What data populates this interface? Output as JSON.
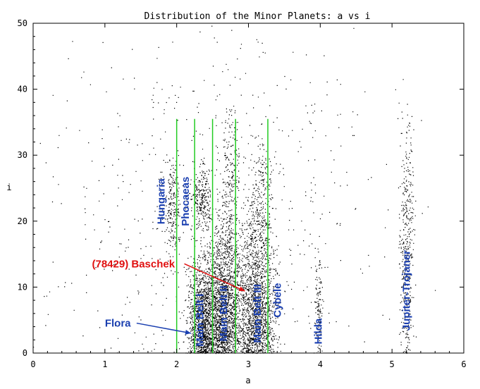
{
  "chart_data": {
    "type": "scatter",
    "title": "Distribution of the Minor Planets: a vs i",
    "xlabel": "a",
    "ylabel": "i",
    "xlim": [
      0,
      6
    ],
    "ylim": [
      0,
      50
    ],
    "xticks": [
      "0",
      "1",
      "2",
      "3",
      "4",
      "5",
      "6"
    ],
    "yticks": [
      "0",
      "10",
      "20",
      "30",
      "40",
      "50"
    ],
    "grid": false,
    "point_color": "#000000",
    "boundary_color": "#22cc22",
    "label_color": "#1a3fb0",
    "highlight_color": "#e01010",
    "boundaries": [
      {
        "x": 2.0,
        "y_top": 35.5
      },
      {
        "x": 2.25,
        "y_top": 35.5
      },
      {
        "x": 2.5,
        "y_top": 35.5
      },
      {
        "x": 2.82,
        "y_top": 35.5
      },
      {
        "x": 3.27,
        "y_top": 35.5
      }
    ],
    "clusters": [
      {
        "x_center": 2.35,
        "x_spread": 0.1,
        "y_center": 5,
        "y_spread": 4.5,
        "count": 1200
      },
      {
        "x_center": 2.65,
        "x_spread": 0.13,
        "y_center": 7,
        "y_spread": 6,
        "count": 1800
      },
      {
        "x_center": 3.1,
        "x_spread": 0.14,
        "y_center": 8,
        "y_spread": 7,
        "count": 1700
      },
      {
        "x_center": 2.75,
        "x_spread": 0.06,
        "y_center": 24,
        "y_spread": 6,
        "count": 250
      },
      {
        "x_center": 2.35,
        "x_spread": 0.07,
        "y_center": 23.5,
        "y_spread": 2.5,
        "count": 260
      },
      {
        "x_center": 1.93,
        "x_spread": 0.05,
        "y_center": 22,
        "y_spread": 4,
        "count": 220
      },
      {
        "x_center": 3.15,
        "x_spread": 0.08,
        "y_center": 24,
        "y_spread": 4,
        "count": 200
      },
      {
        "x_center": 3.97,
        "x_spread": 0.03,
        "y_center": 7,
        "y_spread": 5,
        "count": 130
      },
      {
        "x_center": 5.2,
        "x_spread": 0.05,
        "y_center": 16,
        "y_spread": 10,
        "count": 420
      },
      {
        "x_center": 2.4,
        "x_spread": 1.2,
        "y_center": 22,
        "y_spread": 14,
        "count": 650
      }
    ],
    "region_labels": [
      {
        "text": "Hungaria",
        "x": 1.83,
        "y": 23
      },
      {
        "text": "Phocaeas",
        "x": 2.17,
        "y": 23
      },
      {
        "text": "Main Belt I",
        "x": 2.37,
        "y": 5
      },
      {
        "text": "Main Belt II",
        "x": 2.7,
        "y": 6
      },
      {
        "text": "Main Belt III",
        "x": 3.17,
        "y": 6
      },
      {
        "text": "Cybele",
        "x": 3.45,
        "y": 8
      },
      {
        "text": "Hilda",
        "x": 4.02,
        "y": 3.3
      },
      {
        "text": "Jupiter-Trojaner",
        "x": 5.25,
        "y": 9.5
      }
    ],
    "annotations": [
      {
        "text": "Flora",
        "label_x": 1.0,
        "label_y": 4,
        "arrow_x": 2.2,
        "arrow_y": 3,
        "color": "#1a3fb0"
      },
      {
        "text": "(78429) Baschek",
        "label_x": 0.82,
        "label_y": 13,
        "arrow_x": 2.95,
        "arrow_y": 9.4,
        "color": "#e01010"
      }
    ]
  }
}
